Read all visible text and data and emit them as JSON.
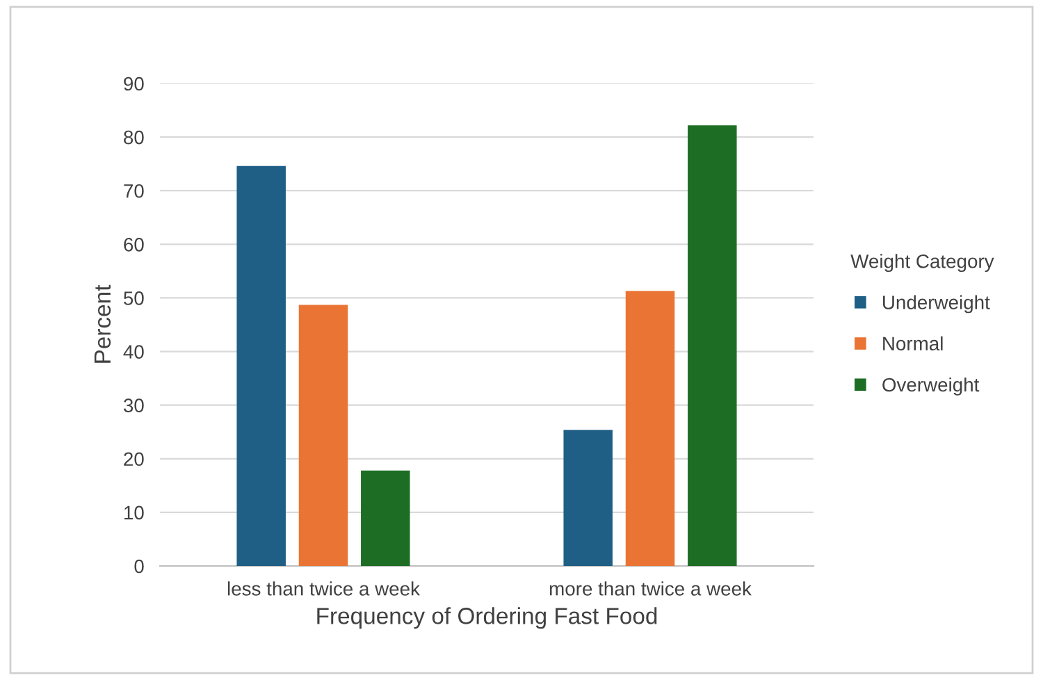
{
  "chart_data": {
    "type": "bar",
    "xlabel": "Frequency of Ordering Fast Food",
    "ylabel": "Percent",
    "legend_title": "Weight Category",
    "categories": [
      "less than twice a week",
      "more than twice a week"
    ],
    "series": [
      {
        "name": "Underweight",
        "color": "#1f5f85",
        "values": [
          74.6,
          25.4
        ]
      },
      {
        "name": "Normal",
        "color": "#ea7434",
        "values": [
          48.7,
          51.3
        ]
      },
      {
        "name": "Overweight",
        "color": "#1d6e24",
        "values": [
          17.8,
          82.2
        ]
      }
    ],
    "ylim": [
      0,
      90
    ],
    "yticks": [
      0,
      10,
      20,
      30,
      40,
      50,
      60,
      70,
      80,
      90
    ],
    "grid": "y",
    "legend": "right"
  }
}
